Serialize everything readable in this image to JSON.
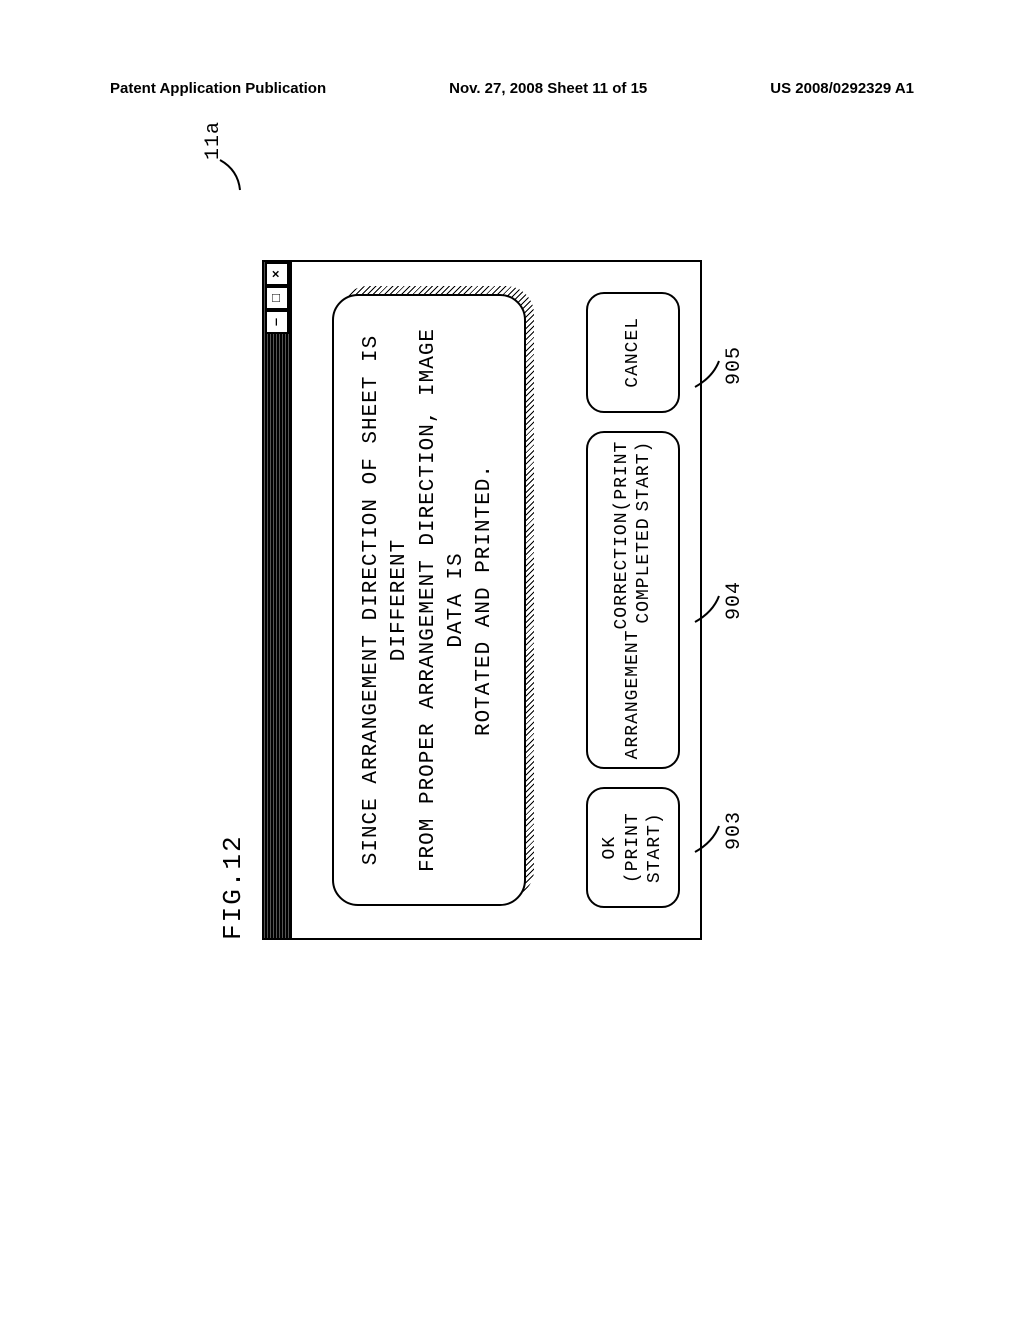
{
  "header": {
    "left": "Patent Application Publication",
    "center": "Nov. 27, 2008  Sheet 11 of 15",
    "right": "US 2008/0292329 A1"
  },
  "figure": {
    "label": "FIG.12",
    "message_lines": [
      "SINCE ARRANGEMENT DIRECTION OF SHEET IS DIFFERENT",
      "FROM PROPER ARRANGEMENT DIRECTION, IMAGE DATA IS",
      "ROTATED AND PRINTED."
    ],
    "buttons": {
      "ok": {
        "label": "OK (PRINT START)",
        "ref": "903"
      },
      "correct": {
        "label": "ARRANGEMENT\nCORRECTION COMPLETED\n(PRINT START)",
        "ref": "904"
      },
      "cancel": {
        "label": "CANCEL",
        "ref": "905"
      }
    },
    "window_ref": "11a",
    "window_controls": [
      "‒",
      "□",
      "×"
    ],
    "colors": {
      "page_bg": "#ffffff",
      "ink": "#000000",
      "titlebar_fill": "#303030"
    },
    "font_family": "Courier New",
    "rotation_deg": -90
  }
}
